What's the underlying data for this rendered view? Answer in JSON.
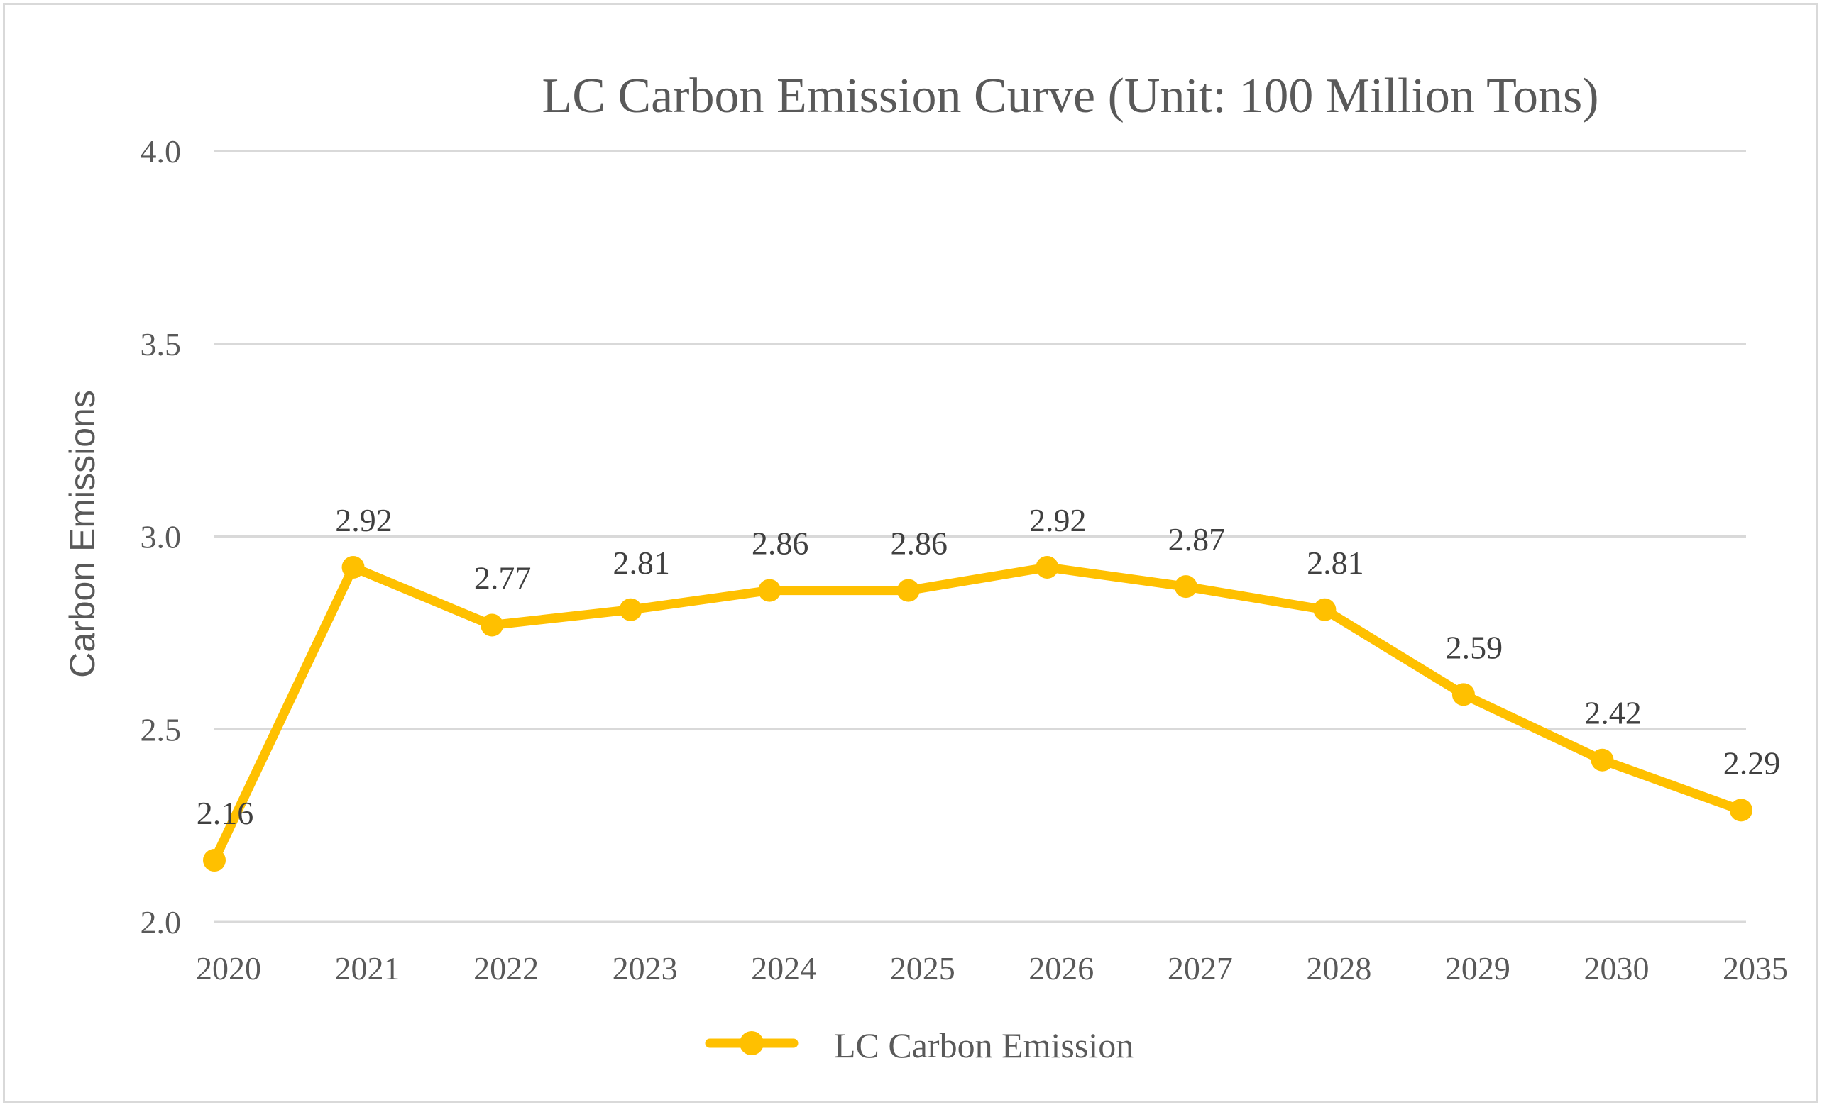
{
  "chart_data": {
    "type": "line",
    "title": "LC Carbon Emission Curve (Unit: 100 Million Tons)",
    "xlabel": "",
    "ylabel": "Carbon Emissions",
    "categories": [
      "2020",
      "2021",
      "2022",
      "2023",
      "2024",
      "2025",
      "2026",
      "2027",
      "2028",
      "2029",
      "2030",
      "2035"
    ],
    "series": [
      {
        "name": "LC Carbon Emission",
        "values": [
          2.16,
          2.92,
          2.77,
          2.81,
          2.86,
          2.86,
          2.92,
          2.87,
          2.81,
          2.59,
          2.42,
          2.29
        ],
        "color": "#FFC000"
      }
    ],
    "ylim": [
      2.0,
      4.0
    ],
    "yticks": [
      {
        "value": 2.0,
        "label": "2.0"
      },
      {
        "value": 2.5,
        "label": "2.5"
      },
      {
        "value": 3.0,
        "label": "3.0"
      },
      {
        "value": 3.5,
        "label": "3.5"
      },
      {
        "value": 4.0,
        "label": "4.0"
      }
    ],
    "grid": true,
    "gridColor": "#d9d9d9",
    "textColor": "#595959",
    "legend": "bottom"
  }
}
